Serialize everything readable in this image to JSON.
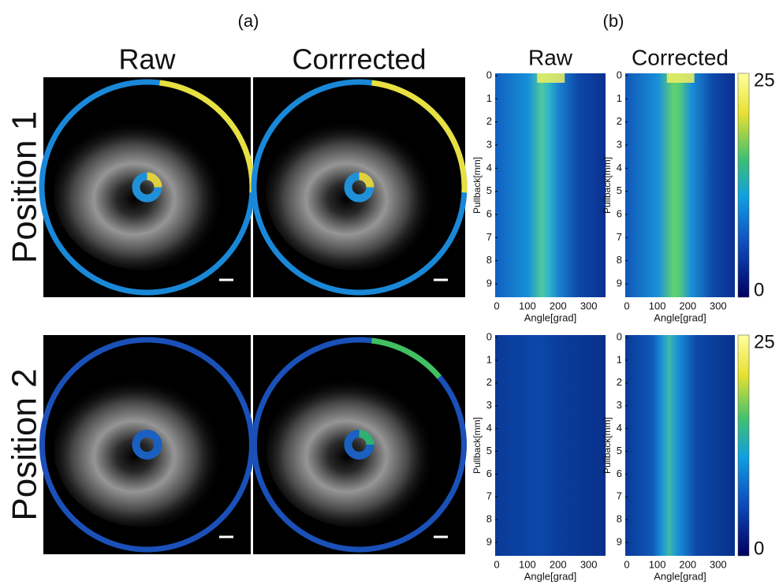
{
  "panel_labels": [
    "(a)",
    "(b)"
  ],
  "image_panel": {
    "column_titles": [
      "Raw",
      "Corrrected"
    ],
    "row_labels": [
      "Position 1",
      "Position 2"
    ]
  },
  "heatmap_panel": {
    "column_titles": [
      "Raw",
      "Corrected"
    ],
    "y_label": "Pullback[mm]",
    "x_label": "Angle[grad]",
    "y_ticks": [
      "0",
      "1",
      "2",
      "3",
      "4",
      "5",
      "6",
      "7",
      "8",
      "9"
    ],
    "x_ticks": [
      "0",
      "100",
      "200",
      "300"
    ],
    "colorbar_labels": [
      "25",
      "0"
    ]
  }
}
